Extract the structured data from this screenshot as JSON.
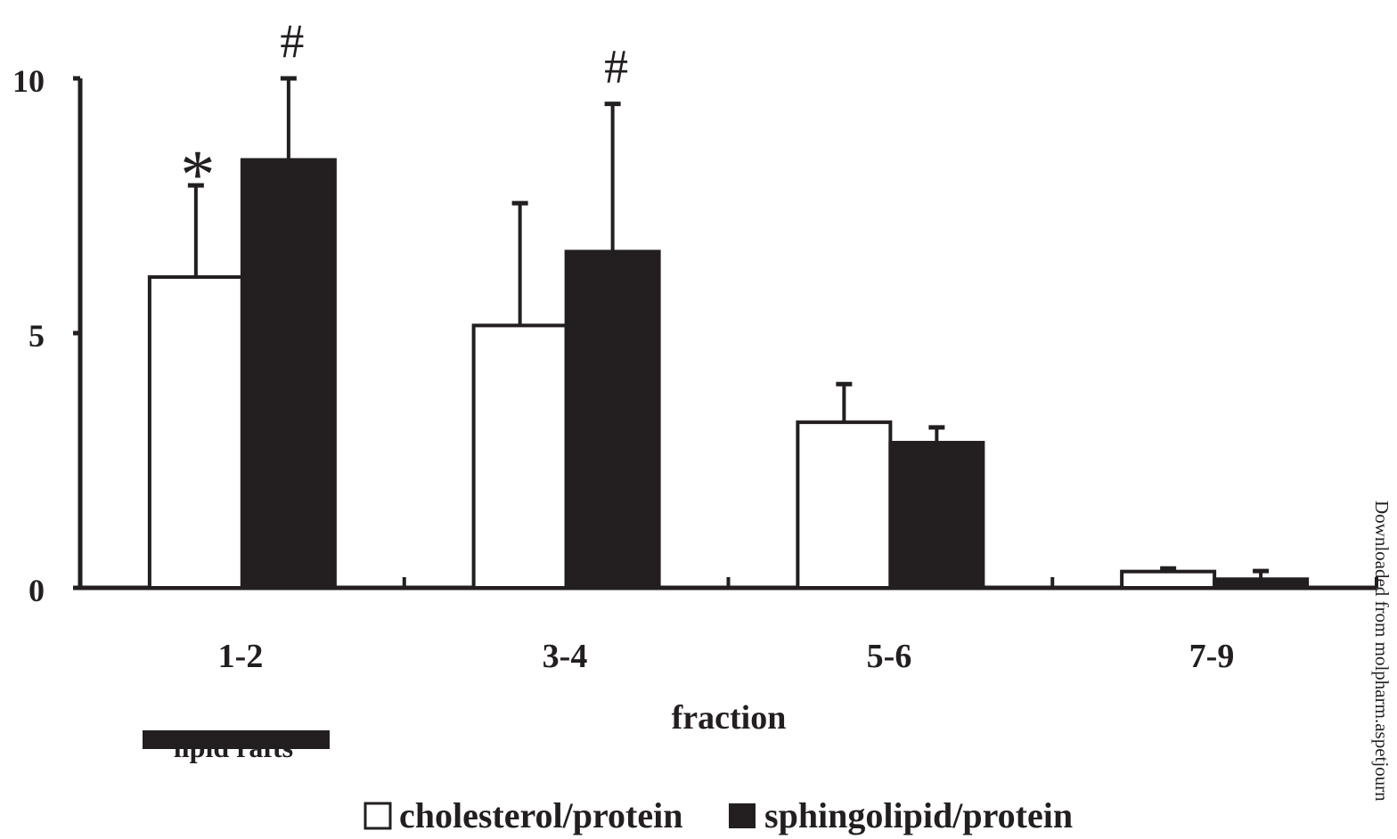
{
  "chart_data": {
    "type": "bar",
    "categories": [
      "1-2",
      "3-4",
      "5-6",
      "7-9"
    ],
    "series": [
      {
        "name": "cholesterol/protein",
        "fill": "#ffffff",
        "values": [
          6.1,
          5.15,
          3.25,
          0.32
        ],
        "errors": [
          1.8,
          2.4,
          0.75,
          0.06
        ]
      },
      {
        "name": "sphingolipid/protein",
        "fill": "#231f20",
        "values": [
          8.4,
          6.6,
          2.85,
          0.17
        ],
        "errors": [
          1.6,
          2.9,
          0.3,
          0.16
        ]
      }
    ],
    "markers": [
      {
        "category_index": 0,
        "series_index": 0,
        "symbol": "*"
      },
      {
        "category_index": 0,
        "series_index": 1,
        "symbol": "#"
      },
      {
        "category_index": 1,
        "series_index": 1,
        "symbol": "#"
      }
    ],
    "yticks": [
      "0",
      "5",
      "10"
    ],
    "ylim": [
      0,
      10
    ],
    "xlabel": "fraction",
    "ylabel": "",
    "title": "",
    "annotation": {
      "label": "lipid rafts",
      "spans_category_index": 0
    },
    "legend_placement": "bottom",
    "ink_color": "#231f20"
  },
  "watermark": "Downloaded from molpharm.aspetjourn"
}
